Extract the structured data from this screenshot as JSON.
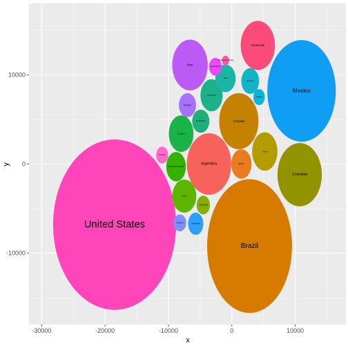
{
  "chart_data": {
    "type": "scatter",
    "xlabel": "x",
    "ylabel": "y",
    "xlim": [
      -32000,
      18000
    ],
    "ylim": [
      -18000,
      18000
    ],
    "x_ticks": [
      -30000,
      -20000,
      -10000,
      0,
      10000
    ],
    "y_ticks": [
      -10000,
      0,
      10000
    ],
    "x_tick_labels": [
      "-30000",
      "-20000",
      "-10000",
      "0",
      "10000"
    ],
    "y_tick_labels": [
      "-10000",
      "0",
      "10000"
    ],
    "grid": true,
    "background": "#EBEBEB",
    "bubbles": [
      {
        "label": "United States",
        "x": -18500,
        "y": -6800,
        "rx": 9700,
        "ry": 9550,
        "color": "#FF45B9"
      },
      {
        "label": "Brazil",
        "x": 2800,
        "y": -9200,
        "rx": 6700,
        "ry": 7500,
        "color": "#D67B00"
      },
      {
        "label": "Mexico",
        "x": 11000,
        "y": 8200,
        "rx": 5400,
        "ry": 5700,
        "color": "#109EF4"
      },
      {
        "label": "Colombia",
        "x": 10700,
        "y": -1200,
        "rx": 3500,
        "ry": 3550,
        "color": "#939200"
      },
      {
        "label": "Argentina",
        "x": -3600,
        "y": 0,
        "rx": 3500,
        "ry": 3450,
        "color": "#F7625A"
      },
      {
        "label": "Canada",
        "x": 1100,
        "y": 4800,
        "rx": 3100,
        "ry": 3150,
        "color": "#C48200"
      },
      {
        "label": "Venezuela",
        "x": 4100,
        "y": 13300,
        "rx": 2700,
        "ry": 2750,
        "color": "#FC4A7B"
      },
      {
        "label": "Peru",
        "x": -6600,
        "y": 11100,
        "rx": 2800,
        "ry": 2850,
        "color": "#BC5AF5"
      },
      {
        "label": "Chile",
        "x": 5200,
        "y": 1400,
        "rx": 2000,
        "ry": 2150,
        "color": "#B29C00"
      },
      {
        "label": "Ecuador",
        "x": -8000,
        "y": 3400,
        "rx": 1950,
        "ry": 2050,
        "color": "#1AB348"
      },
      {
        "label": "Guatemala",
        "x": -3200,
        "y": 7700,
        "rx": 1750,
        "ry": 1800,
        "color": "#1BB28A"
      },
      {
        "label": "Cuba",
        "x": -7500,
        "y": -3600,
        "rx": 1900,
        "ry": 1850,
        "color": "#5EB500"
      },
      {
        "label": "Bolivia",
        "x": 1500,
        "y": 0,
        "rx": 1600,
        "ry": 1650,
        "color": "#E97C1C"
      },
      {
        "label": "Haiti",
        "x": -1000,
        "y": 9600,
        "rx": 1600,
        "ry": 1550,
        "color": "#1BB5A6"
      },
      {
        "label": "Dominican Republic",
        "x": -8800,
        "y": -300,
        "rx": 1550,
        "ry": 1650,
        "color": "#34B200"
      },
      {
        "label": "Honduras",
        "x": 2900,
        "y": 9300,
        "rx": 1400,
        "ry": 1450,
        "color": "#13B4C5"
      },
      {
        "label": "El Salvador",
        "x": -4900,
        "y": 4800,
        "rx": 1350,
        "ry": 1300,
        "color": "#1DAF7C"
      },
      {
        "label": "Paraguay",
        "x": -7000,
        "y": 6600,
        "rx": 1350,
        "ry": 1350,
        "color": "#A770FF"
      },
      {
        "label": "Nicaragua",
        "x": -5700,
        "y": -6700,
        "rx": 1200,
        "ry": 1250,
        "color": "#2D9FFF"
      },
      {
        "label": "Costa Rica",
        "x": -4500,
        "y": -4600,
        "rx": 1050,
        "ry": 1050,
        "color": "#88AC00"
      },
      {
        "label": "Panama",
        "x": -8200,
        "y": -6600,
        "rx": 1000,
        "ry": 950,
        "color": "#7C90FF"
      },
      {
        "label": "Uruguay",
        "x": -11000,
        "y": 1000,
        "rx": 950,
        "ry": 950,
        "color": "#FF6BC9"
      },
      {
        "label": "Jamaica",
        "x": 4300,
        "y": 7500,
        "rx": 900,
        "ry": 900,
        "color": "#09B5D8"
      },
      {
        "label": "Puerto Rico",
        "x": -2600,
        "y": 10900,
        "rx": 1000,
        "ry": 1000,
        "color": "#E94AF5"
      },
      {
        "label": "Trinidad and Tobago",
        "x": -1000,
        "y": 11600,
        "rx": 550,
        "ry": 550,
        "color": "#FF55AA"
      }
    ]
  }
}
